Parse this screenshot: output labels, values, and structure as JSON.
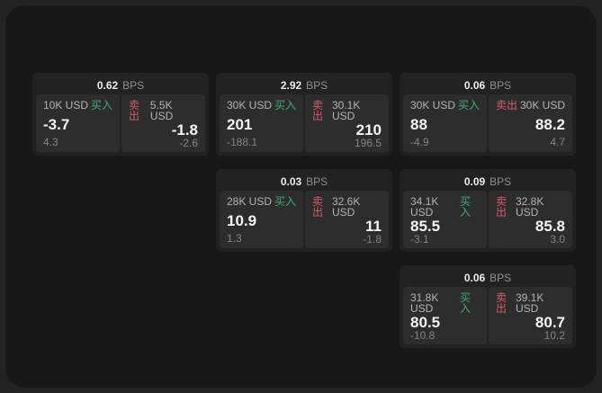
{
  "labels": {
    "buy": "买入",
    "sell": "卖出",
    "bps_unit": "BPS"
  },
  "colors": {
    "buy_green": "#3fae6e",
    "sell_red": "#d95b68",
    "card_bg": "#222222",
    "panel_bg": "#2d2d2d",
    "window_bg": "#181818"
  },
  "cards": [
    {
      "row": 1,
      "col": 1,
      "bps": "0.62",
      "buy": {
        "notional": "10K USD",
        "price": "-3.7",
        "delta": "4.3"
      },
      "sell": {
        "notional": "5.5K USD",
        "price": "-1.8",
        "delta": "-2.6"
      }
    },
    {
      "row": 1,
      "col": 2,
      "bps": "2.92",
      "buy": {
        "notional": "30K USD",
        "price": "201",
        "delta": "-188.1"
      },
      "sell": {
        "notional": "30.1K USD",
        "price": "210",
        "delta": "196.5"
      }
    },
    {
      "row": 1,
      "col": 3,
      "bps": "0.06",
      "buy": {
        "notional": "30K USD",
        "price": "88",
        "delta": "-4.9"
      },
      "sell": {
        "notional": "30K USD",
        "price": "88.2",
        "delta": "4.7"
      }
    },
    {
      "row": 2,
      "col": 2,
      "bps": "0.03",
      "buy": {
        "notional": "28K USD",
        "price": "10.9",
        "delta": "1.3"
      },
      "sell": {
        "notional": "32.6K USD",
        "price": "11",
        "delta": "-1.8"
      }
    },
    {
      "row": 2,
      "col": 3,
      "bps": "0.09",
      "buy": {
        "notional": "34.1K USD",
        "price": "85.5",
        "delta": "-3.1"
      },
      "sell": {
        "notional": "32.8K USD",
        "price": "85.8",
        "delta": "3.0"
      }
    },
    {
      "row": 3,
      "col": 3,
      "bps": "0.06",
      "buy": {
        "notional": "31.8K USD",
        "price": "80.5",
        "delta": "-10.8"
      },
      "sell": {
        "notional": "39.1K USD",
        "price": "80.7",
        "delta": "10.2"
      }
    }
  ]
}
